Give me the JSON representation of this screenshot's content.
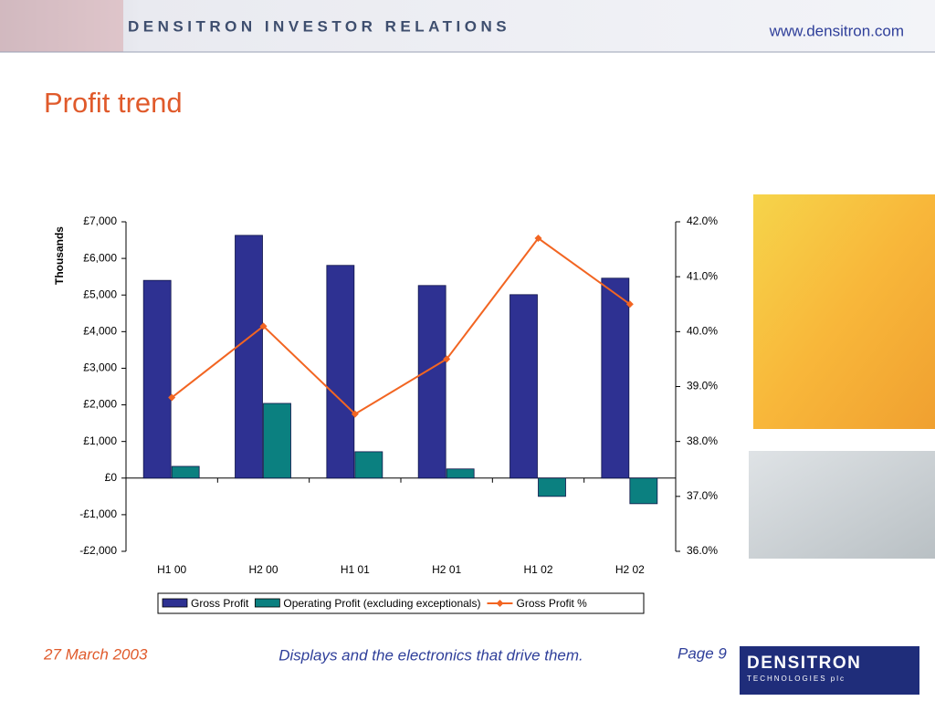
{
  "header": {
    "banner": "DENSITRON INVESTOR RELATIONS",
    "url": "www.densitron.com"
  },
  "title": "Profit trend",
  "chart_data": {
    "type": "bar",
    "y_label": "Thousands",
    "categories": [
      "H1 00",
      "H2 00",
      "H1 01",
      "H2 01",
      "H1 02",
      "H2 02"
    ],
    "series": [
      {
        "name": "Gross Profit",
        "color": "#2e3192",
        "values": [
          5400,
          6630,
          5810,
          5260,
          5010,
          5460
        ]
      },
      {
        "name": "Operating Profit (excluding exceptionals)",
        "color": "#0b8080",
        "values": [
          320,
          2040,
          720,
          250,
          -500,
          -700
        ]
      },
      {
        "name": "Gross Profit %",
        "color": "#f26522",
        "type": "line",
        "axis": "y2",
        "values": [
          38.8,
          40.1,
          38.5,
          39.5,
          41.7,
          40.5
        ]
      }
    ],
    "ylim": [
      -2000,
      7000
    ],
    "yticks": [
      {
        "value": -2000,
        "label": "-£2,000"
      },
      {
        "value": -1000,
        "label": "-£1,000"
      },
      {
        "value": 0,
        "label": "£0"
      },
      {
        "value": 1000,
        "label": "£1,000"
      },
      {
        "value": 2000,
        "label": "£2,000"
      },
      {
        "value": 3000,
        "label": "£3,000"
      },
      {
        "value": 4000,
        "label": "£4,000"
      },
      {
        "value": 5000,
        "label": "£5,000"
      },
      {
        "value": 6000,
        "label": "£6,000"
      },
      {
        "value": 7000,
        "label": "£7,000"
      }
    ],
    "y2lim": [
      36,
      42
    ],
    "y2ticks": [
      {
        "value": 36,
        "label": "36.0%"
      },
      {
        "value": 37,
        "label": "37.0%"
      },
      {
        "value": 38,
        "label": "38.0%"
      },
      {
        "value": 39,
        "label": "39.0%"
      },
      {
        "value": 40,
        "label": "40.0%"
      },
      {
        "value": 41,
        "label": "41.0%"
      },
      {
        "value": 42,
        "label": "42.0%"
      }
    ],
    "grid": false,
    "legend": "bottom"
  },
  "footer": {
    "date": "27 March 2003",
    "tagline": "Displays and the electronics that drive them.",
    "page": "Page 9",
    "logo_name": "DENSITRON",
    "logo_sub": "TECHNOLOGIES plc"
  }
}
